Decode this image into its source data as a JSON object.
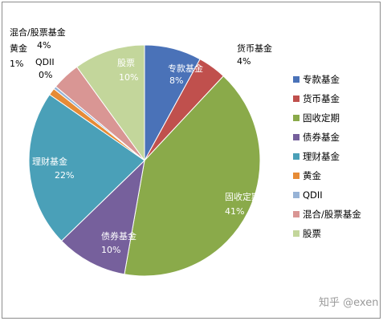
{
  "chart_data": {
    "type": "pie",
    "title": "",
    "legend_position": "right",
    "slices": [
      {
        "name": "专款基金",
        "value": 8,
        "label": "8%",
        "color": "#4a72b8"
      },
      {
        "name": "货币基金",
        "value": 4,
        "label": "4%",
        "color": "#c0504d"
      },
      {
        "name": "固收定期",
        "value": 41,
        "label": "41%",
        "color": "#8aaa4a"
      },
      {
        "name": "债券基金",
        "value": 10,
        "label": "10%",
        "color": "#76609c"
      },
      {
        "name": "理财基金",
        "value": 22,
        "label": "22%",
        "color": "#4aa0b8"
      },
      {
        "name": "黄金",
        "value": 1,
        "label": "1%",
        "color": "#e68b36"
      },
      {
        "name": "QDII",
        "value": 0.4,
        "label": "0%",
        "color": "#97b3d6"
      },
      {
        "name": "混合/股票基金",
        "value": 4,
        "label": "4%",
        "color": "#d99694"
      },
      {
        "name": "股票",
        "value": 10,
        "label": "10%",
        "color": "#c3d69b"
      }
    ]
  },
  "watermark": "知乎 @exen"
}
